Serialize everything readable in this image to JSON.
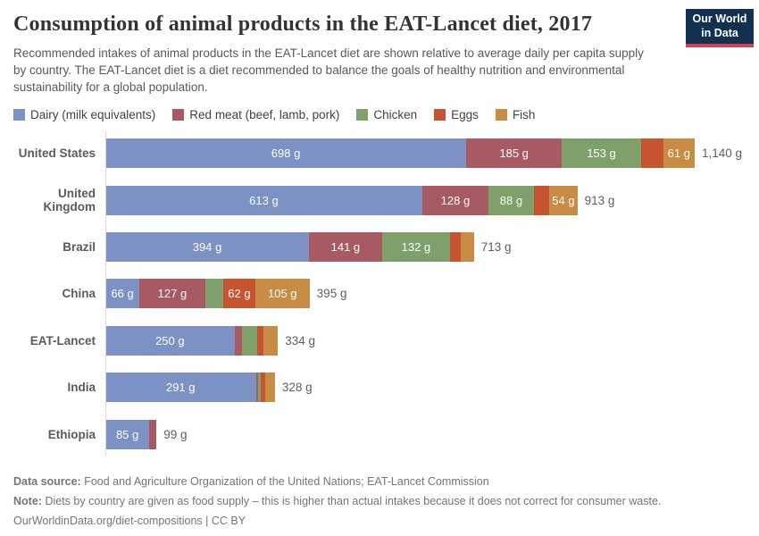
{
  "header": {
    "title": "Consumption of animal products in the EAT-Lancet diet, 2017",
    "subtitle": "Recommended intakes of animal products in the EAT-Lancet diet are shown relative to average daily per capita supply by country. The EAT-Lancet diet is a diet recommended to balance the goals of healthy nutrition and environmental sustainability for a global population.",
    "logo": {
      "line1": "Our World",
      "line2": "in Data",
      "bg_color": "#12304f",
      "accent_color": "#d93c4b"
    }
  },
  "chart_data": {
    "type": "bar",
    "orientation": "horizontal",
    "stacked": true,
    "title": "Consumption of animal products in the EAT-Lancet diet, 2017",
    "unit": "g",
    "xmax": 1140,
    "grid": false,
    "legend_position": "top",
    "categories": [
      "United States",
      "United Kingdom",
      "Brazil",
      "China",
      "EAT-Lancet",
      "India",
      "Ethiopia"
    ],
    "series": [
      {
        "name": "Dairy (milk equivalents)",
        "color": "#7c91c4",
        "values": [
          698,
          613,
          394,
          66,
          250,
          291,
          85
        ]
      },
      {
        "name": "Red meat (beef, lamb, pork)",
        "color": "#a85a62",
        "values": [
          185,
          128,
          141,
          127,
          14,
          5,
          14
        ]
      },
      {
        "name": "Chicken",
        "color": "#7f9f6b",
        "values": [
          153,
          88,
          132,
          35,
          29,
          4,
          0
        ]
      },
      {
        "name": "Eggs",
        "color": "#c75430",
        "values": [
          43,
          30,
          21,
          62,
          13,
          10,
          0
        ]
      },
      {
        "name": "Fish",
        "color": "#c98c44",
        "values": [
          61,
          54,
          25,
          105,
          28,
          18,
          0
        ]
      }
    ],
    "segment_labels": [
      [
        "698 g",
        "185 g",
        "153 g",
        "",
        "61 g"
      ],
      [
        "613 g",
        "128 g",
        "88 g",
        "",
        "54 g"
      ],
      [
        "394 g",
        "141 g",
        "132 g",
        "",
        ""
      ],
      [
        "66 g",
        "127 g",
        "",
        "62 g",
        "105 g"
      ],
      [
        "250 g",
        "",
        "",
        "",
        ""
      ],
      [
        "291 g",
        "",
        "",
        "",
        ""
      ],
      [
        "85 g",
        "",
        "",
        "",
        ""
      ]
    ],
    "totals": [
      "1,140 g",
      "913 g",
      "713 g",
      "395 g",
      "334 g",
      "328 g",
      "99 g"
    ]
  },
  "footer": {
    "source_label": "Data source:",
    "source_text": "Food and Agriculture Organization of the United Nations; EAT-Lancet Commission",
    "note_label": "Note:",
    "note_text": "Diets by country are given as food supply – this is higher than actual intakes because it does not correct for consumer waste.",
    "link": "OurWorldinData.org/diet-compositions | CC BY"
  }
}
